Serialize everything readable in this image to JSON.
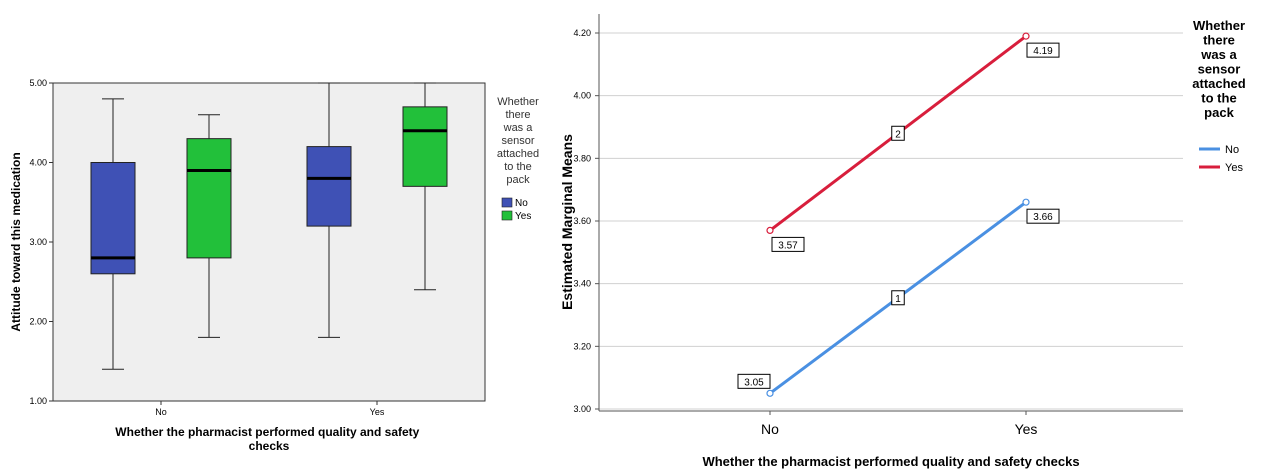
{
  "chart_data": [
    {
      "type": "box",
      "title": "",
      "xlabel": "Whether the pharmacist performed quality and safety checks",
      "ylabel": "Attitude toward this medication",
      "ylim": [
        1.0,
        5.0
      ],
      "yticks": [
        "1.00",
        "2.00",
        "3.00",
        "4.00",
        "5.00"
      ],
      "categories": [
        "No",
        "Yes"
      ],
      "legend": {
        "title": "Whether there was a sensor attached to the pack",
        "title_lines": [
          "Whether",
          "there",
          "was a",
          "sensor",
          "attached",
          "to the",
          "pack"
        ],
        "placement": "right"
      },
      "series": [
        {
          "name": "No",
          "color": "#3f51b5",
          "boxes": [
            {
              "category": "No",
              "min": 1.4,
              "q1": 2.6,
              "median": 2.8,
              "q3": 4.0,
              "max": 4.8
            },
            {
              "category": "Yes",
              "min": 1.8,
              "q1": 3.2,
              "median": 3.8,
              "q3": 4.2,
              "max": 5.0
            }
          ]
        },
        {
          "name": "Yes",
          "color": "#22c03a",
          "boxes": [
            {
              "category": "No",
              "min": 1.8,
              "q1": 2.8,
              "median": 3.9,
              "q3": 4.3,
              "max": 4.6
            },
            {
              "category": "Yes",
              "min": 2.4,
              "q1": 3.7,
              "median": 4.4,
              "q3": 4.7,
              "max": 5.0
            }
          ]
        }
      ],
      "background": "#efefef"
    },
    {
      "type": "line",
      "title": "",
      "xlabel": "Whether the pharmacist performed quality and safety checks",
      "ylabel": "Estimated Marginal Means",
      "ylim": [
        3.0,
        4.2
      ],
      "yticks": [
        "3.00",
        "3.20",
        "3.40",
        "3.60",
        "3.80",
        "4.00",
        "4.20"
      ],
      "categories": [
        "No",
        "Yes"
      ],
      "grid": true,
      "legend": {
        "title": "Whether there was a sensor attached to the pack",
        "title_lines": [
          "Whether",
          "there",
          "was a",
          "sensor",
          "attached",
          "to the",
          "pack"
        ],
        "placement": "right"
      },
      "series": [
        {
          "name": "No",
          "color": "#4a90e2",
          "values": [
            3.05,
            3.66
          ],
          "labels": [
            "3.05",
            "3.66"
          ],
          "line_label": "1"
        },
        {
          "name": "Yes",
          "color": "#d81e3c",
          "values": [
            3.57,
            4.19
          ],
          "labels": [
            "3.57",
            "4.19"
          ],
          "line_label": "2"
        }
      ]
    }
  ]
}
